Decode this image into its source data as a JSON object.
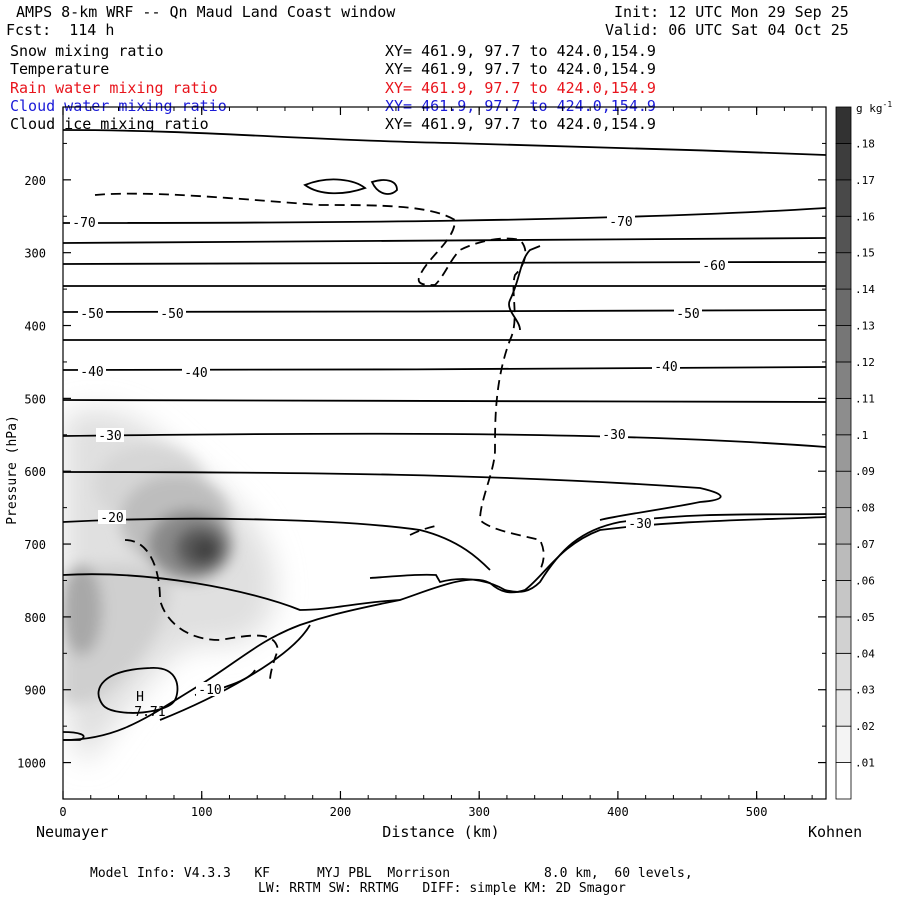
{
  "header": {
    "title": "AMPS 8-km WRF -- Qn Maud Land Coast window",
    "init": "Init: 12 UTC Mon 29 Sep 25",
    "fcst": "Fcst:  114 h",
    "valid": "Valid: 06 UTC Sat 04 Oct 25"
  },
  "fields": [
    {
      "name": "Snow mixing ratio",
      "xy": "XY= 461.9, 97.7 to 424.0,154.9",
      "color": "#000000"
    },
    {
      "name": "Temperature",
      "xy": "XY= 461.9, 97.7 to 424.0,154.9",
      "color": "#000000"
    },
    {
      "name": "Rain water mixing ratio",
      "xy": "XY= 461.9, 97.7 to 424.0,154.9",
      "color": "#e8141c"
    },
    {
      "name": "Cloud water mixing ratio",
      "xy": "XY= 461.9, 97.7 to 424.0,154.9",
      "color": "#1a1ad8"
    },
    {
      "name": "Cloud ice mixing ratio",
      "xy": "XY= 461.9, 97.7 to 424.0,154.9",
      "color": "#000000"
    }
  ],
  "chart_data": {
    "type": "heatmap",
    "xlabel": "Distance (km)",
    "ylabel": "Pressure (hPa)",
    "xlim": [
      0,
      550
    ],
    "ylim": [
      1050,
      100
    ],
    "x_ticks": [
      0,
      100,
      200,
      300,
      400,
      500
    ],
    "y_ticks": [
      200,
      300,
      400,
      500,
      600,
      700,
      800,
      900,
      1000
    ],
    "x_start_label": "Neumayer",
    "x_end_label": "Kohnen",
    "colorbar": {
      "unit": "g kg",
      "unit_sup": "-1",
      "levels": [
        ".01",
        ".02",
        ".03",
        ".04",
        ".05",
        ".06",
        ".07",
        ".08",
        ".09",
        ".1",
        ".11",
        ".12",
        ".13",
        ".14",
        ".15",
        ".16",
        ".17",
        ".18"
      ]
    },
    "snow_max": {
      "x": 100,
      "p": 710,
      "value": 0.18
    },
    "isotherms": [
      {
        "label": "-70",
        "p": 255,
        "label_x": [
          15,
          400
        ]
      },
      {
        "label": "-60",
        "p": 305,
        "label_x": [
          465
        ]
      },
      {
        "label": "-50",
        "p": 380,
        "label_x": [
          20,
          78,
          445
        ]
      },
      {
        "label": "-40",
        "p": 460,
        "label_x": [
          20,
          95,
          432
        ]
      },
      {
        "label": "-30",
        "p": 545,
        "label_x": [
          35,
          395,
          415
        ]
      },
      {
        "label": "-20",
        "p": 675,
        "label_x": [
          35
        ]
      },
      {
        "label": "-10",
        "p": 890,
        "label_x": [
          105
        ]
      }
    ],
    "extremum": {
      "label": "H",
      "value": "-7.71",
      "x": 55,
      "p": 910
    }
  },
  "footer": {
    "line1": "Model Info: V4.3.3   KF      MYJ PBL  Morrison            8.0 km,  60 levels,",
    "line2": "LW: RRTM SW: RRTMG   DIFF: simple KM: 2D Smagor"
  }
}
